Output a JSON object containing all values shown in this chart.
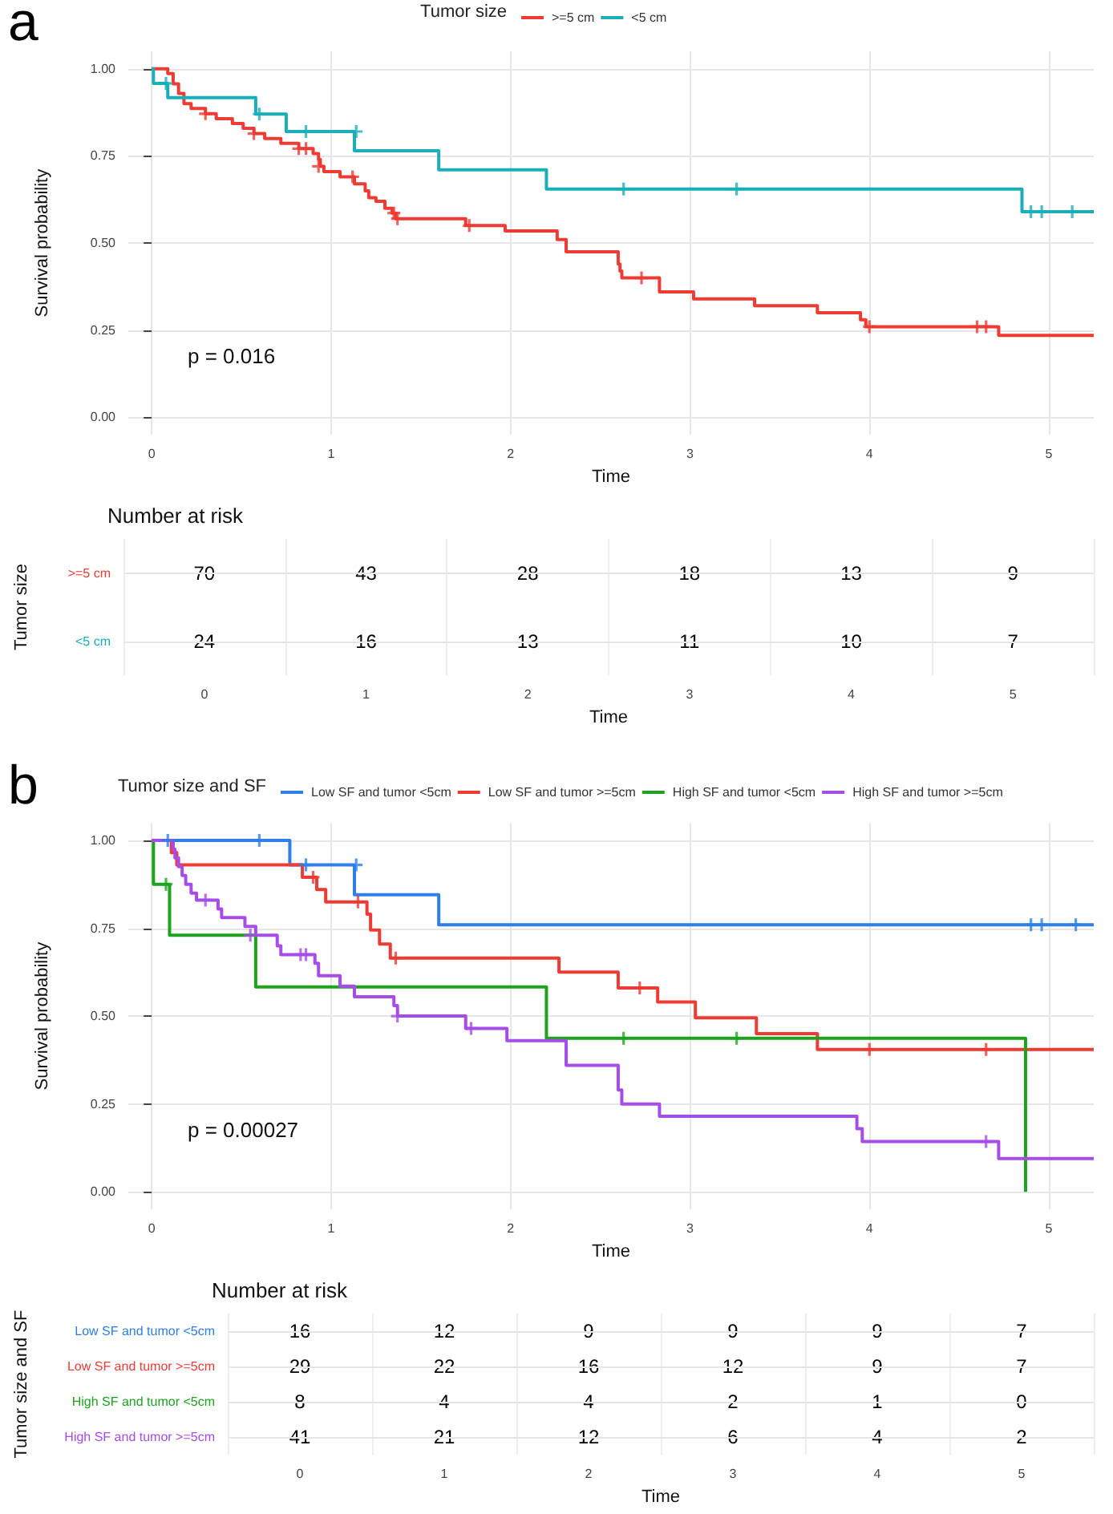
{
  "chart_data": [
    {
      "type": "step",
      "title": "a",
      "xlabel": "Time",
      "ylabel": "Survival probability",
      "legend_title": "Tumor size",
      "legend": "top",
      "grid": true,
      "line_style": "solid",
      "marker": "none",
      "annotations": [
        "p = 0.016"
      ],
      "xlim": [
        -0.13,
        5.25
      ],
      "xticks": [
        0,
        1,
        2,
        3,
        4,
        5
      ],
      "ylim": [
        -0.05,
        1.05
      ],
      "yticks": [
        {
          "value": 0,
          "label": "0.00"
        },
        {
          "value": 0.25,
          "label": "0.25"
        },
        {
          "value": 0.5,
          "label": "0.50"
        },
        {
          "value": 0.75,
          "label": "0.75"
        },
        {
          "value": 1,
          "label": "1.00"
        }
      ],
      "series": [
        {
          "name": ">=5 cm",
          "color": "#ee3b34",
          "x": [
            0,
            0.09,
            0.12,
            0.15,
            0.18,
            0.22,
            0.3,
            0.36,
            0.45,
            0.51,
            0.57,
            0.63,
            0.72,
            0.82,
            0.9,
            0.93,
            0.94,
            0.96,
            1.05,
            1.13,
            1.19,
            1.21,
            1.25,
            1.3,
            1.34,
            1.36,
            1.75,
            1.97,
            2.26,
            2.31,
            2.6,
            2.61,
            2.62,
            2.83,
            3.02,
            3.36,
            3.71,
            3.95,
            3.98,
            4.72,
            5.25
          ],
          "values": [
            1,
            0.986,
            0.957,
            0.929,
            0.9,
            0.886,
            0.871,
            0.857,
            0.843,
            0.829,
            0.814,
            0.8,
            0.786,
            0.771,
            0.757,
            0.74,
            0.72,
            0.705,
            0.69,
            0.67,
            0.65,
            0.63,
            0.62,
            0.6,
            0.586,
            0.57,
            0.55,
            0.535,
            0.51,
            0.475,
            0.44,
            0.42,
            0.4,
            0.36,
            0.34,
            0.32,
            0.3,
            0.28,
            0.26,
            0.235,
            0.235
          ]
        },
        {
          "name": "<5 cm",
          "color": "#1aaeb8",
          "x": [
            0,
            0.01,
            0.09,
            0.58,
            0.75,
            1.13,
            1.6,
            2.2,
            4.85,
            5.25
          ],
          "values": [
            1,
            0.958,
            0.917,
            0.87,
            0.82,
            0.765,
            0.71,
            0.655,
            0.59,
            0.59
          ]
        },
        {
          "type": "scatter",
          "marker": "cross",
          "color": "#ee3b34",
          "x": [
            0.3,
            0.57,
            0.82,
            0.86,
            0.93,
            1.12,
            1.35,
            1.37,
            1.77,
            2.73,
            4.0,
            4.6,
            4.65
          ],
          "values": [
            0.871,
            0.814,
            0.771,
            0.771,
            0.72,
            0.69,
            0.586,
            0.57,
            0.55,
            0.4,
            0.26,
            0.26,
            0.26
          ]
        },
        {
          "type": "scatter",
          "marker": "cross",
          "color": "#1aaeb8",
          "x": [
            0.08,
            0.6,
            0.86,
            1.14,
            2.63,
            3.26,
            4.9,
            4.96,
            5.13
          ],
          "values": [
            0.958,
            0.87,
            0.82,
            0.82,
            0.655,
            0.655,
            0.59,
            0.59,
            0.59
          ]
        }
      ]
    },
    {
      "type": "heatmap",
      "title": "Number at risk",
      "xlabel": "Time",
      "ylabel": "Tumor size",
      "grid": true,
      "data_labels": true,
      "categories": [
        "0",
        "1",
        "2",
        "3",
        "4",
        "5"
      ],
      "y_categories": [
        ">=5 cm",
        "<5 cm"
      ],
      "colors": [
        "#ee3b34",
        "#1aaeb8"
      ],
      "cells": [
        [
          70,
          43,
          28,
          18,
          13,
          9
        ],
        [
          24,
          16,
          13,
          11,
          10,
          7
        ]
      ]
    },
    {
      "type": "step",
      "title": "b",
      "xlabel": "Time",
      "ylabel": "Survival probability",
      "legend_title": "Tumor size and SF",
      "legend": "top",
      "grid": true,
      "line_style": "solid",
      "marker": "none",
      "annotations": [
        "p = 0.00027"
      ],
      "xlim": [
        -0.13,
        5.25
      ],
      "xticks": [
        0,
        1,
        2,
        3,
        4,
        5
      ],
      "ylim": [
        -0.05,
        1.05
      ],
      "yticks": [
        {
          "value": 0,
          "label": "0.00"
        },
        {
          "value": 0.25,
          "label": "0.25"
        },
        {
          "value": 0.5,
          "label": "0.50"
        },
        {
          "value": 0.75,
          "label": "0.75"
        },
        {
          "value": 1,
          "label": "1.00"
        }
      ],
      "series": [
        {
          "name": "Low SF and tumor <5cm",
          "color": "#2f7fe8",
          "x": [
            0,
            0.77,
            1.13,
            1.6,
            5.25
          ],
          "values": [
            1,
            0.93,
            0.845,
            0.76,
            0.76
          ]
        },
        {
          "name": "Low SF and tumor >=5cm",
          "color": "#ee3b34",
          "x": [
            0,
            0.11,
            0.14,
            0.84,
            0.92,
            0.97,
            1.2,
            1.22,
            1.27,
            1.33,
            2.27,
            2.6,
            2.82,
            3.03,
            3.37,
            3.71,
            5.25
          ],
          "values": [
            1,
            0.965,
            0.93,
            0.895,
            0.86,
            0.825,
            0.79,
            0.745,
            0.705,
            0.665,
            0.625,
            0.58,
            0.54,
            0.495,
            0.45,
            0.405,
            0.405
          ]
        },
        {
          "name": "High SF and tumor <5cm",
          "color": "#1fa31f",
          "x": [
            0,
            0.01,
            0.1,
            0.58,
            2.2,
            4.87,
            4.87
          ],
          "values": [
            1,
            0.875,
            0.73,
            0.583,
            0.437,
            0.437,
            0
          ]
        },
        {
          "name": "High SF and tumor >=5cm",
          "color": "#a64de8",
          "x": [
            0,
            0.12,
            0.13,
            0.15,
            0.17,
            0.19,
            0.22,
            0.25,
            0.37,
            0.39,
            0.52,
            0.58,
            0.7,
            0.72,
            0.91,
            0.93,
            1.05,
            1.13,
            1.35,
            1.37,
            1.75,
            1.98,
            2.31,
            2.6,
            2.62,
            2.83,
            3.93,
            3.96,
            4.72,
            5.25
          ],
          "values": [
            1,
            0.975,
            0.95,
            0.925,
            0.9,
            0.875,
            0.85,
            0.83,
            0.805,
            0.78,
            0.755,
            0.73,
            0.7,
            0.675,
            0.65,
            0.615,
            0.585,
            0.555,
            0.53,
            0.5,
            0.465,
            0.43,
            0.36,
            0.29,
            0.25,
            0.215,
            0.18,
            0.143,
            0.095,
            0.095
          ]
        },
        {
          "type": "scatter",
          "marker": "cross",
          "color": "#2f7fe8",
          "x": [
            0.09,
            0.6,
            0.86,
            1.14,
            4.9,
            4.96,
            5.15
          ],
          "values": [
            1,
            1,
            0.93,
            0.93,
            0.76,
            0.76,
            0.76
          ]
        },
        {
          "type": "scatter",
          "marker": "cross",
          "color": "#ee3b34",
          "x": [
            0.9,
            1.15,
            1.36,
            2.72,
            4.0,
            4.65
          ],
          "values": [
            0.895,
            0.825,
            0.665,
            0.58,
            0.405,
            0.405
          ]
        },
        {
          "type": "scatter",
          "marker": "cross",
          "color": "#1fa31f",
          "x": [
            0.08,
            2.63,
            3.26
          ],
          "values": [
            0.875,
            0.437,
            0.437
          ]
        },
        {
          "type": "scatter",
          "marker": "cross",
          "color": "#a64de8",
          "x": [
            0.3,
            0.55,
            0.83,
            0.86,
            1.37,
            1.78,
            4.65
          ],
          "values": [
            0.83,
            0.73,
            0.675,
            0.675,
            0.5,
            0.465,
            0.143
          ]
        }
      ]
    },
    {
      "type": "heatmap",
      "title": "Number at risk",
      "xlabel": "Time",
      "ylabel": "Tumor size and SF",
      "grid": true,
      "data_labels": true,
      "categories": [
        "0",
        "1",
        "2",
        "3",
        "4",
        "5"
      ],
      "y_categories": [
        "Low SF and tumor <5cm",
        "Low SF and tumor >=5cm",
        "High SF and tumor <5cm",
        "High SF and tumor >=5cm"
      ],
      "colors": [
        "#2f7fe8",
        "#ee3b34",
        "#1fa31f",
        "#a64de8"
      ],
      "cells": [
        [
          16,
          12,
          9,
          9,
          9,
          7
        ],
        [
          29,
          22,
          16,
          12,
          9,
          7
        ],
        [
          8,
          4,
          4,
          2,
          1,
          0
        ],
        [
          41,
          21,
          12,
          6,
          4,
          2
        ]
      ]
    }
  ]
}
